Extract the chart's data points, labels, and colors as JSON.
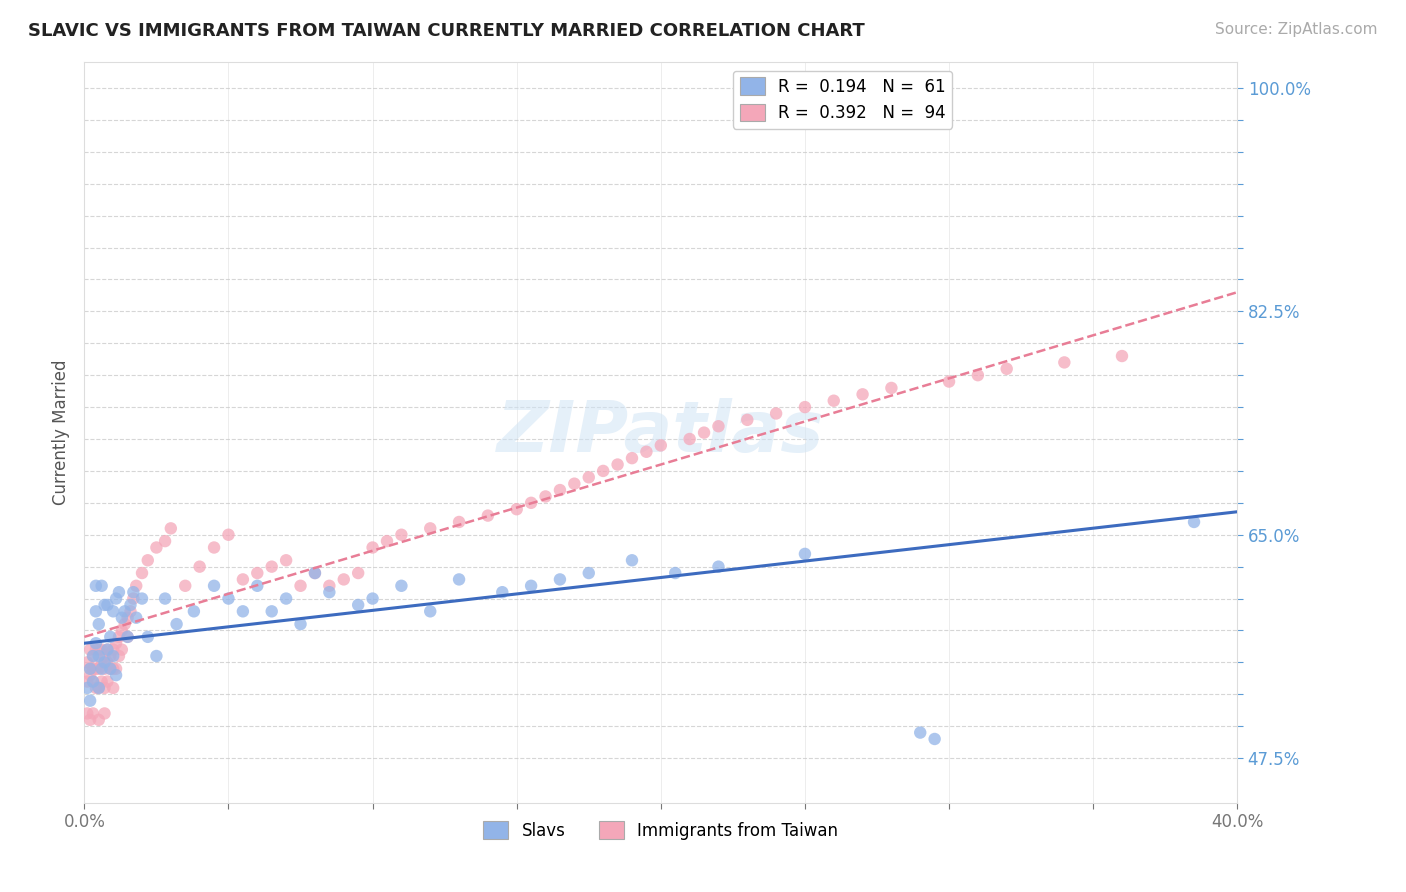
{
  "title": "SLAVIC VS IMMIGRANTS FROM TAIWAN CURRENTLY MARRIED CORRELATION CHART",
  "source_text": "Source: ZipAtlas.com",
  "ylabel": "Currently Married",
  "xlim": [
    0.0,
    0.4
  ],
  "ylim": [
    0.44,
    1.02
  ],
  "xtick_positions": [
    0.0,
    0.05,
    0.1,
    0.15,
    0.2,
    0.25,
    0.3,
    0.35,
    0.4
  ],
  "xtick_labels": [
    "0.0%",
    "",
    "",
    "",
    "",
    "",
    "",
    "",
    "40.0%"
  ],
  "ytick_positions": [
    0.475,
    0.5,
    0.525,
    0.55,
    0.575,
    0.6,
    0.625,
    0.65,
    0.675,
    0.7,
    0.725,
    0.75,
    0.775,
    0.8,
    0.825,
    0.85,
    0.875,
    0.9,
    0.925,
    0.95,
    0.975,
    1.0
  ],
  "ytick_labeled": {
    "0.475": "47.5%",
    "0.65": "65.0%",
    "0.825": "82.5%",
    "1.0": "100.0%"
  },
  "slavs_color": "#92b4e8",
  "taiwan_color": "#f4a7b9",
  "slavs_line_color": "#3d6bbf",
  "taiwan_line_color": "#e87d96",
  "slavs_R": 0.194,
  "slavs_N": 61,
  "taiwan_R": 0.392,
  "taiwan_N": 94,
  "legend_label_slavs": "R =  0.194   N =  61",
  "legend_label_taiwan": "R =  0.392   N =  94",
  "watermark": "ZIPatlas",
  "background_color": "#ffffff",
  "grid_color": "#cccccc",
  "ytick_color": "#5b9bd5",
  "xtick_color": "#777777",
  "slavs_x": [
    0.001,
    0.002,
    0.002,
    0.003,
    0.003,
    0.004,
    0.004,
    0.004,
    0.005,
    0.005,
    0.005,
    0.006,
    0.006,
    0.007,
    0.007,
    0.008,
    0.008,
    0.009,
    0.009,
    0.01,
    0.01,
    0.011,
    0.011,
    0.012,
    0.013,
    0.014,
    0.015,
    0.016,
    0.017,
    0.018,
    0.02,
    0.022,
    0.025,
    0.028,
    0.032,
    0.038,
    0.045,
    0.05,
    0.055,
    0.06,
    0.065,
    0.07,
    0.075,
    0.08,
    0.085,
    0.095,
    0.1,
    0.11,
    0.12,
    0.13,
    0.145,
    0.155,
    0.165,
    0.175,
    0.19,
    0.205,
    0.22,
    0.25,
    0.29,
    0.295,
    0.385
  ],
  "slavs_y": [
    0.53,
    0.545,
    0.52,
    0.535,
    0.555,
    0.61,
    0.59,
    0.565,
    0.58,
    0.555,
    0.53,
    0.545,
    0.61,
    0.55,
    0.595,
    0.595,
    0.56,
    0.545,
    0.57,
    0.555,
    0.59,
    0.54,
    0.6,
    0.605,
    0.585,
    0.59,
    0.57,
    0.595,
    0.605,
    0.585,
    0.6,
    0.57,
    0.555,
    0.6,
    0.58,
    0.59,
    0.61,
    0.6,
    0.59,
    0.61,
    0.59,
    0.6,
    0.58,
    0.62,
    0.605,
    0.595,
    0.6,
    0.61,
    0.59,
    0.615,
    0.605,
    0.61,
    0.615,
    0.62,
    0.63,
    0.62,
    0.625,
    0.635,
    0.495,
    0.49,
    0.66
  ],
  "taiwan_x": [
    0.001,
    0.001,
    0.001,
    0.002,
    0.002,
    0.002,
    0.002,
    0.003,
    0.003,
    0.003,
    0.003,
    0.004,
    0.004,
    0.004,
    0.005,
    0.005,
    0.005,
    0.005,
    0.006,
    0.006,
    0.006,
    0.007,
    0.007,
    0.007,
    0.007,
    0.008,
    0.008,
    0.008,
    0.009,
    0.009,
    0.01,
    0.01,
    0.01,
    0.011,
    0.011,
    0.012,
    0.012,
    0.013,
    0.013,
    0.014,
    0.015,
    0.015,
    0.016,
    0.017,
    0.018,
    0.02,
    0.022,
    0.025,
    0.028,
    0.03,
    0.035,
    0.04,
    0.045,
    0.05,
    0.055,
    0.06,
    0.065,
    0.07,
    0.075,
    0.08,
    0.085,
    0.09,
    0.095,
    0.1,
    0.105,
    0.11,
    0.12,
    0.13,
    0.14,
    0.15,
    0.155,
    0.16,
    0.165,
    0.17,
    0.175,
    0.18,
    0.185,
    0.19,
    0.195,
    0.2,
    0.21,
    0.215,
    0.22,
    0.23,
    0.24,
    0.25,
    0.26,
    0.27,
    0.28,
    0.3,
    0.31,
    0.32,
    0.34,
    0.36
  ],
  "taiwan_y": [
    0.55,
    0.535,
    0.51,
    0.54,
    0.56,
    0.545,
    0.505,
    0.555,
    0.535,
    0.545,
    0.51,
    0.56,
    0.545,
    0.53,
    0.56,
    0.545,
    0.53,
    0.505,
    0.56,
    0.55,
    0.535,
    0.555,
    0.545,
    0.53,
    0.51,
    0.56,
    0.55,
    0.535,
    0.555,
    0.545,
    0.56,
    0.545,
    0.53,
    0.565,
    0.545,
    0.57,
    0.555,
    0.575,
    0.56,
    0.58,
    0.585,
    0.57,
    0.59,
    0.6,
    0.61,
    0.62,
    0.63,
    0.64,
    0.645,
    0.655,
    0.61,
    0.625,
    0.64,
    0.65,
    0.615,
    0.62,
    0.625,
    0.63,
    0.61,
    0.62,
    0.61,
    0.615,
    0.62,
    0.64,
    0.645,
    0.65,
    0.655,
    0.66,
    0.665,
    0.67,
    0.675,
    0.68,
    0.685,
    0.69,
    0.695,
    0.7,
    0.705,
    0.71,
    0.715,
    0.72,
    0.725,
    0.73,
    0.735,
    0.74,
    0.745,
    0.75,
    0.755,
    0.76,
    0.765,
    0.77,
    0.775,
    0.78,
    0.785,
    0.79
  ],
  "slavs_trend_x": [
    0.0,
    0.4
  ],
  "slavs_trend_y": [
    0.565,
    0.668
  ],
  "taiwan_trend_x": [
    0.0,
    0.4
  ],
  "taiwan_trend_y": [
    0.57,
    0.84
  ]
}
